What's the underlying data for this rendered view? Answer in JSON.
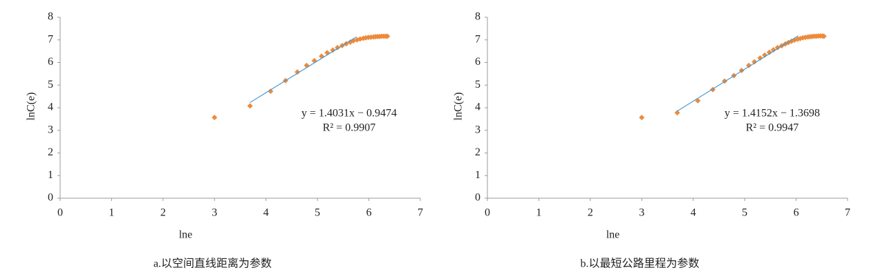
{
  "chart_data": [
    {
      "type": "scatter",
      "caption": "a.以空间直线距离为参数",
      "xlabel": "lne",
      "ylabel": "lnC(e)",
      "xlim": [
        0,
        7
      ],
      "ylim": [
        0,
        8
      ],
      "xticks": [
        0,
        1,
        2,
        3,
        4,
        5,
        6,
        7
      ],
      "yticks": [
        0,
        1,
        2,
        3,
        4,
        5,
        6,
        7,
        8
      ],
      "color": "#ed8b3a",
      "x": [
        3,
        3.69,
        4.09,
        4.38,
        4.61,
        4.79,
        4.94,
        5.08,
        5.19,
        5.3,
        5.39,
        5.48,
        5.56,
        5.64,
        5.7,
        5.77,
        5.83,
        5.89,
        5.94,
        5.99,
        6.04,
        6.09,
        6.13,
        6.17,
        6.21,
        6.25,
        6.29,
        6.33,
        6.36
      ],
      "y": [
        3.57,
        4.08,
        4.73,
        5.2,
        5.58,
        5.87,
        6.08,
        6.28,
        6.43,
        6.55,
        6.66,
        6.75,
        6.83,
        6.9,
        6.96,
        7.0,
        7.04,
        7.07,
        7.09,
        7.11,
        7.12,
        7.13,
        7.14,
        7.15,
        7.15,
        7.16,
        7.16,
        7.16,
        7.16
      ],
      "trendline": {
        "equation": "y = 1.4031x − 0.9474",
        "r2": "R² = 0.9907",
        "slope": 1.4031,
        "intercept": -0.9474,
        "x_range": [
          3.69,
          5.76
        ],
        "color": "#4a9bd4"
      }
    },
    {
      "type": "scatter",
      "caption": "b.以最短公路里程为参数",
      "xlabel": "lne",
      "ylabel": "lnC(e)",
      "xlim": [
        0,
        7
      ],
      "ylim": [
        0,
        8
      ],
      "xticks": [
        0,
        1,
        2,
        3,
        4,
        5,
        6,
        7
      ],
      "yticks": [
        0,
        1,
        2,
        3,
        4,
        5,
        6,
        7,
        8
      ],
      "color": "#ed8b3a",
      "x": [
        3,
        3.69,
        4.09,
        4.38,
        4.61,
        4.79,
        4.94,
        5.08,
        5.19,
        5.3,
        5.39,
        5.48,
        5.56,
        5.64,
        5.72,
        5.79,
        5.85,
        5.91,
        5.97,
        6.03,
        6.08,
        6.13,
        6.18,
        6.23,
        6.27,
        6.31,
        6.35,
        6.39,
        6.43,
        6.47,
        6.51,
        6.54
      ],
      "y": [
        3.57,
        3.78,
        4.31,
        4.8,
        5.18,
        5.42,
        5.65,
        5.87,
        6.03,
        6.2,
        6.33,
        6.45,
        6.56,
        6.66,
        6.74,
        6.82,
        6.88,
        6.94,
        6.99,
        7.03,
        7.06,
        7.09,
        7.11,
        7.13,
        7.14,
        7.15,
        7.16,
        7.16,
        7.17,
        7.17,
        7.17,
        7.16
      ],
      "trendline": {
        "equation": "y = 1.4152x − 1.3698",
        "r2": "R² = 0.9947",
        "slope": 1.4152,
        "intercept": -1.3698,
        "x_range": [
          3.69,
          6.04
        ],
        "color": "#4a9bd4"
      }
    }
  ]
}
